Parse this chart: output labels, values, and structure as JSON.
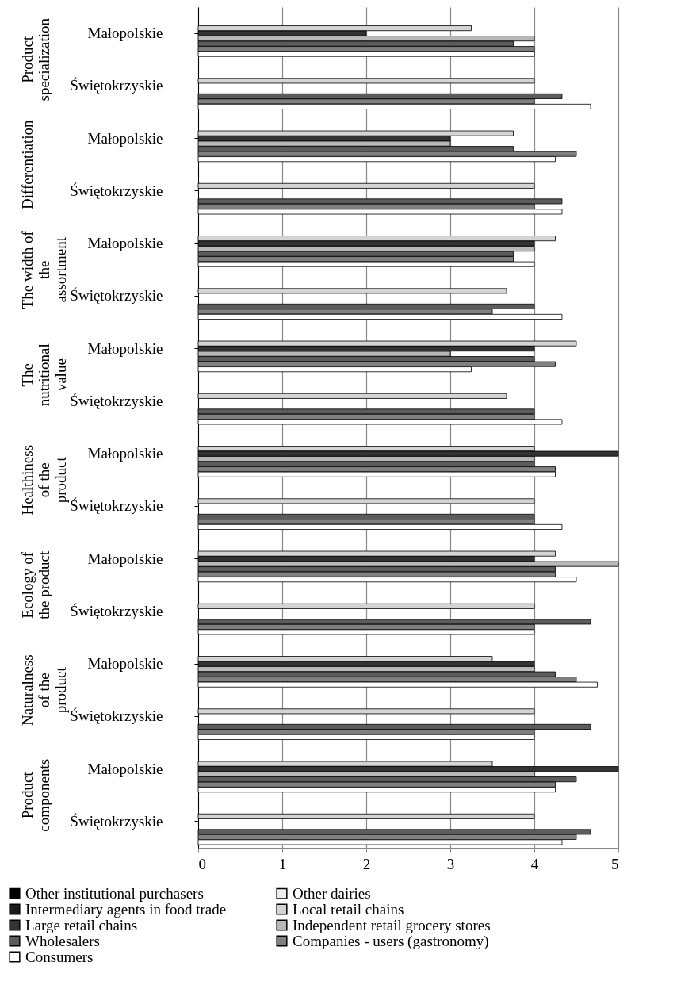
{
  "chart_data": {
    "type": "bar",
    "orientation": "horizontal",
    "categories": [
      "Małopolskie",
      "Świętokrzyskie",
      "Małopolskie",
      "Świętokrzyskie",
      "Małopolskie",
      "Świętokrzyskie",
      "Małopolskie",
      "Świętokrzyskie",
      "Małopolskie",
      "Świętokrzyskie",
      "Małopolskie",
      "Świętokrzyskie",
      "Małopolskie",
      "Świętokrzyskie",
      "Małopolskie",
      "Świętokrzyskie"
    ],
    "annotations": [
      "Product specialization",
      "Differentiation",
      "The width of the assortment",
      "The nutritional value",
      "Healthiness of the product",
      "Ecology of the product",
      "Naturalness of the product",
      "Product components"
    ],
    "series": [
      {
        "name": "Other institutional purchasers",
        "color": "#000000",
        "values": [
          null,
          null,
          null,
          null,
          null,
          null,
          null,
          null,
          null,
          null,
          null,
          null,
          null,
          null,
          null,
          null
        ]
      },
      {
        "name": "Other dairies",
        "color": "#eeeeee",
        "values": [
          null,
          null,
          null,
          null,
          null,
          null,
          null,
          null,
          null,
          null,
          null,
          null,
          null,
          null,
          null,
          null
        ]
      },
      {
        "name": "Intermediary agents in food trade",
        "color": "#1a1a1a",
        "values": [
          null,
          null,
          null,
          null,
          null,
          null,
          null,
          null,
          null,
          null,
          null,
          null,
          null,
          null,
          null,
          null
        ]
      },
      {
        "name": "Local retail chains",
        "color": "#d4d4d4",
        "values": [
          3.25,
          4,
          3.75,
          4,
          4.25,
          3.67,
          4.5,
          3.67,
          4,
          4,
          4.25,
          4,
          3.5,
          4,
          3.5,
          4
        ]
      },
      {
        "name": "Large retail chains",
        "color": "#333333",
        "values": [
          2,
          null,
          3,
          null,
          4,
          null,
          4,
          null,
          5,
          null,
          4,
          null,
          4,
          null,
          5,
          null
        ]
      },
      {
        "name": "Independent retail grocery stores",
        "color": "#b8b8b8",
        "values": [
          4,
          null,
          3,
          null,
          4,
          null,
          3,
          null,
          4,
          null,
          5,
          null,
          4,
          null,
          4,
          null
        ]
      },
      {
        "name": "Wholesalers",
        "color": "#5c5c5c",
        "values": [
          3.75,
          4.33,
          3.75,
          4.33,
          3.75,
          4,
          4,
          4,
          4,
          4,
          4.25,
          4.67,
          4.25,
          4.67,
          4.5,
          4.67
        ]
      },
      {
        "name": "Companies - users (gastronomy)",
        "color": "#808080",
        "values": [
          4,
          4,
          4.5,
          4,
          3.75,
          3.5,
          4.25,
          4,
          4.25,
          4,
          4.25,
          4,
          4.5,
          4,
          4.25,
          4.5
        ]
      },
      {
        "name": "Consumers",
        "color": "#ffffff",
        "values": [
          4,
          4.67,
          4.25,
          4.33,
          4,
          4.33,
          3.25,
          4.33,
          4.25,
          4.33,
          4.5,
          4,
          4.75,
          4,
          4.25,
          4.33
        ]
      }
    ],
    "xlim": [
      0,
      5
    ],
    "xticks": [
      0,
      1,
      2,
      3,
      4,
      5
    ],
    "grid": "x",
    "legend": "bottom"
  }
}
